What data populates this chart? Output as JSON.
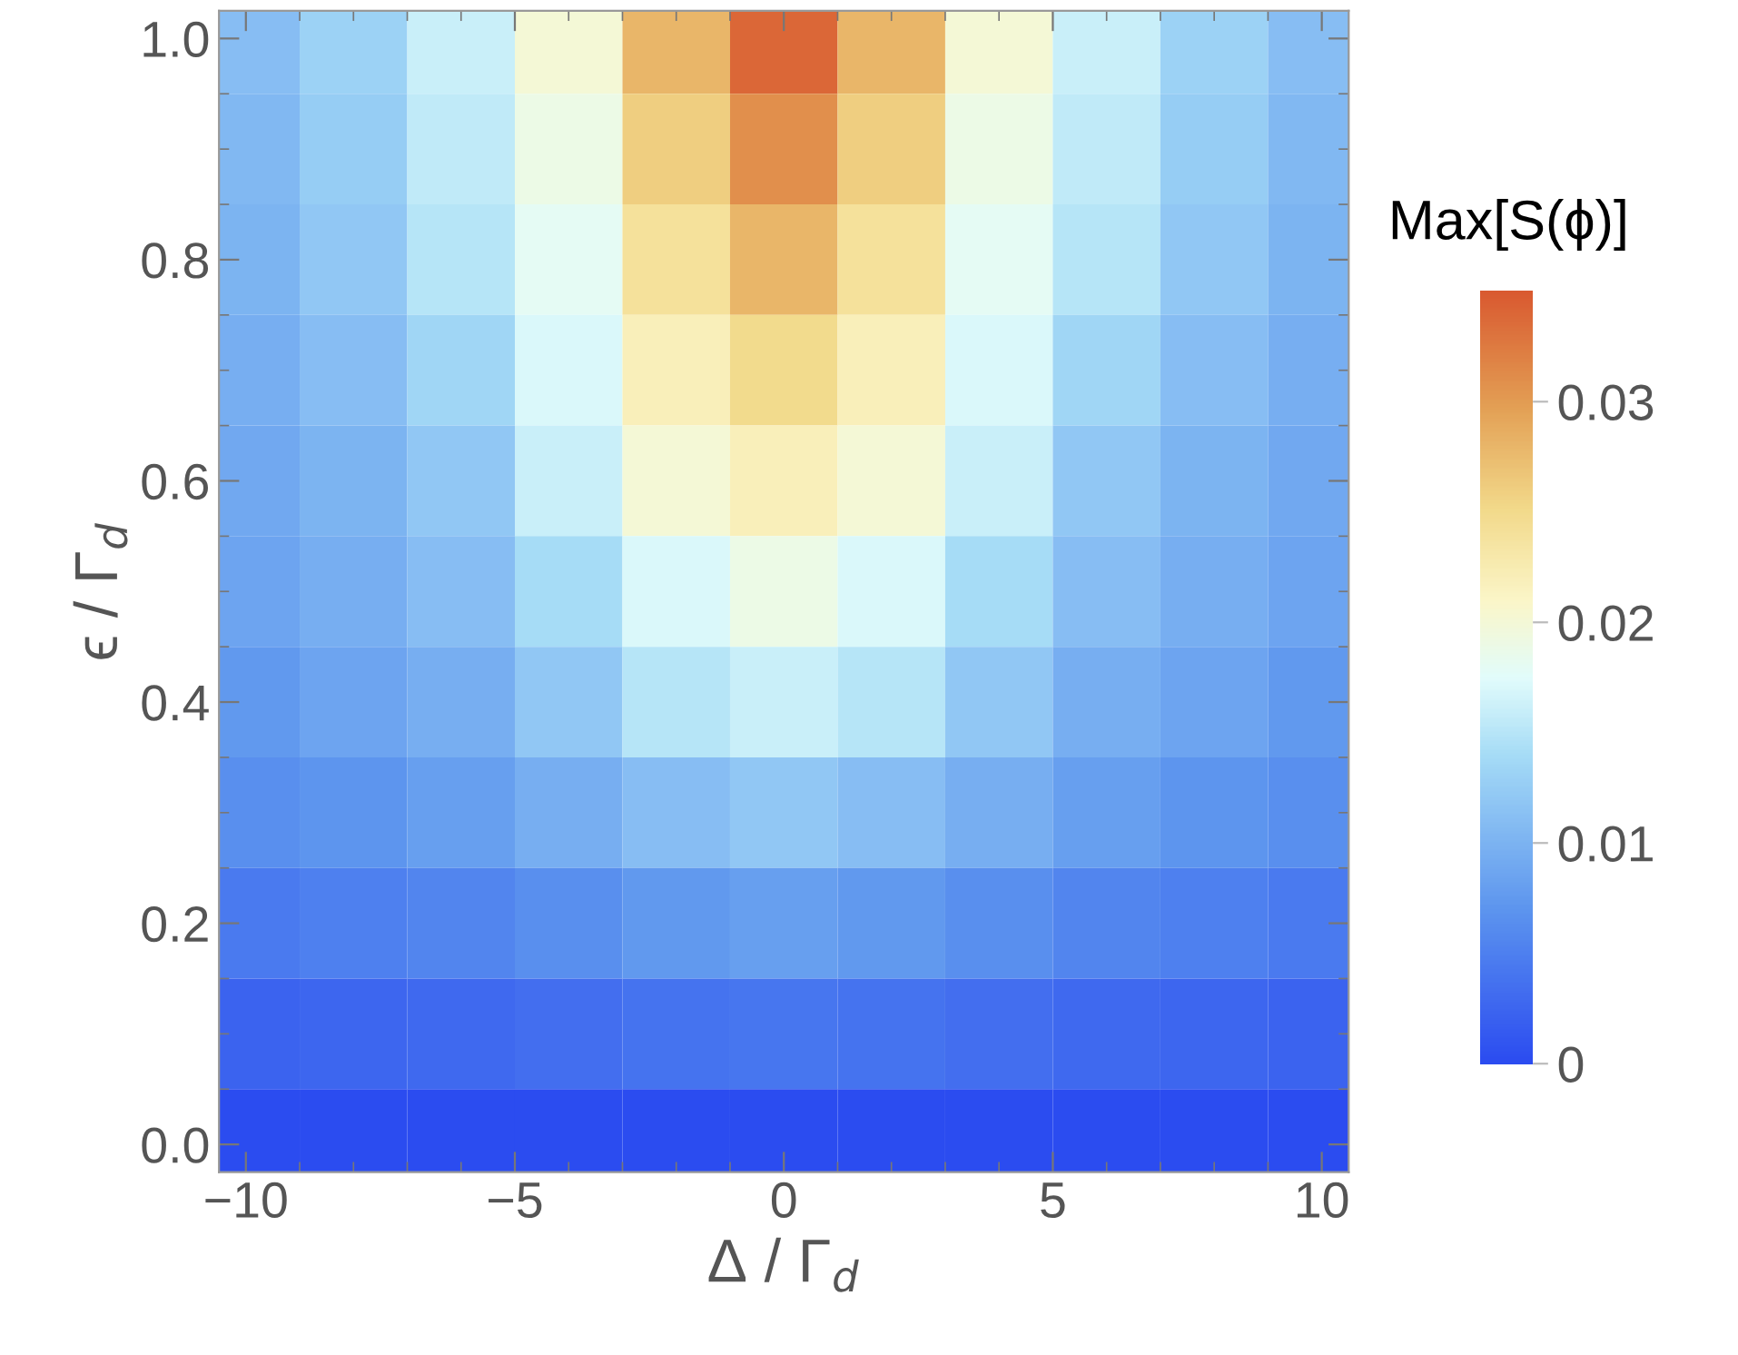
{
  "chart_data": {
    "type": "heatmap",
    "xlabel": "Δ / Γ$_{d}$",
    "ylabel": "ϵ / Γ$_{d}$",
    "clabel": "Max[S(ϕ)]",
    "x": [
      -10,
      -8,
      -6,
      -4,
      -2,
      0,
      2,
      4,
      6,
      8,
      10
    ],
    "y": [
      1.0,
      0.9,
      0.8,
      0.7,
      0.6,
      0.5,
      0.4,
      0.3,
      0.2,
      0.1,
      0.0
    ],
    "cells": [
      [
        0.011,
        0.013,
        0.016,
        0.02,
        0.028,
        0.034,
        0.028,
        0.02,
        0.016,
        0.013,
        0.011
      ],
      [
        0.0105,
        0.0125,
        0.0155,
        0.019,
        0.026,
        0.031,
        0.026,
        0.019,
        0.0155,
        0.0125,
        0.0105
      ],
      [
        0.01,
        0.012,
        0.015,
        0.018,
        0.024,
        0.028,
        0.024,
        0.018,
        0.015,
        0.012,
        0.01
      ],
      [
        0.0095,
        0.011,
        0.0135,
        0.017,
        0.022,
        0.025,
        0.022,
        0.017,
        0.0135,
        0.011,
        0.0095
      ],
      [
        0.009,
        0.01,
        0.012,
        0.016,
        0.02,
        0.022,
        0.02,
        0.016,
        0.012,
        0.01,
        0.009
      ],
      [
        0.0085,
        0.0095,
        0.011,
        0.014,
        0.017,
        0.019,
        0.017,
        0.014,
        0.011,
        0.0095,
        0.0085
      ],
      [
        0.0075,
        0.0085,
        0.0095,
        0.012,
        0.015,
        0.016,
        0.015,
        0.012,
        0.0095,
        0.0085,
        0.0075
      ],
      [
        0.0065,
        0.007,
        0.008,
        0.0095,
        0.011,
        0.012,
        0.011,
        0.0095,
        0.008,
        0.007,
        0.0065
      ],
      [
        0.0045,
        0.005,
        0.0055,
        0.0065,
        0.0075,
        0.008,
        0.0075,
        0.0065,
        0.0055,
        0.005,
        0.0045
      ],
      [
        0.0023,
        0.0025,
        0.0028,
        0.0033,
        0.0038,
        0.004,
        0.0038,
        0.0033,
        0.0028,
        0.0025,
        0.0023
      ],
      [
        0,
        0,
        0,
        0,
        0,
        0,
        0,
        0,
        0,
        0,
        0
      ]
    ],
    "xlim": [
      -10.5,
      10.5
    ],
    "ylim": [
      -0.025,
      1.025
    ],
    "xticks": [
      {
        "value": -10,
        "label": "−10"
      },
      {
        "value": -5,
        "label": "−5"
      },
      0,
      5,
      10
    ],
    "yticks": [
      {
        "value": 0,
        "label": "0.0"
      },
      0.2,
      0.4,
      0.6,
      0.8,
      {
        "value": 1,
        "label": "1.0"
      }
    ],
    "clim": [
      0,
      0.035
    ],
    "cticks": [
      0,
      0.01,
      0.02,
      0.03
    ],
    "grid": false
  }
}
